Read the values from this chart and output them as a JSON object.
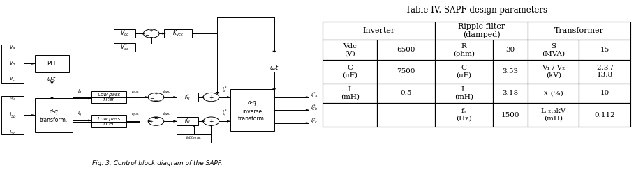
{
  "title_caption": "Fig. 3. Control block diagram of the SAPF.",
  "table_title": "Table IV. SAPF design parameters",
  "table_rows": [
    [
      "Vdc\n(V)",
      "6500",
      "R\n(ohm)",
      "30",
      "S\n(MVA)",
      "15"
    ],
    [
      "C\n(uF)",
      "7500",
      "C\n(uF)",
      "3.53",
      "V₁ / V₂\n(kV)",
      "2.3 /\n13.8"
    ],
    [
      "L\n(mH)",
      "0.5",
      "L\n(mH)",
      "3.18",
      "X (%)",
      "10"
    ],
    [
      "",
      "",
      "fₑ\n(Hz)",
      "1500",
      "L ₂.₃kV\n(mH)",
      "0.112"
    ]
  ],
  "bg_color": "#ffffff"
}
